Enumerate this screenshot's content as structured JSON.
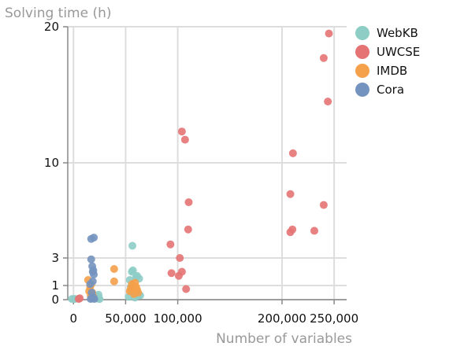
{
  "chart_data": {
    "type": "scatter",
    "title": "",
    "xlabel": "Number of variables",
    "ylabel": "Solving time (h)",
    "xlim": [
      0,
      262000
    ],
    "ylim": [
      0,
      20
    ],
    "x_ticks": [
      0,
      50000,
      100000,
      200000,
      250000
    ],
    "x_tick_labels": [
      "0",
      "50,000",
      "100,000",
      "200,000",
      "250,000"
    ],
    "y_ticks": [
      0,
      1,
      3,
      10,
      20
    ],
    "y_tick_labels": [
      "0",
      "1",
      "3",
      "10",
      "20"
    ],
    "grid": true,
    "legend_position": "top-right",
    "series": [
      {
        "name": "WebKB",
        "color": "#8ecdc6",
        "points": [
          [
            -1500,
            0.05
          ],
          [
            600,
            0.05
          ],
          [
            1500,
            0.05
          ],
          [
            22000,
            0.1
          ],
          [
            23000,
            0.2
          ],
          [
            24000,
            0.35
          ],
          [
            25000,
            0.05
          ],
          [
            23500,
            0.15
          ],
          [
            24500,
            0.05
          ],
          [
            54000,
            1.4
          ],
          [
            55000,
            0.9
          ],
          [
            56000,
            2.0
          ],
          [
            56500,
            3.9
          ],
          [
            57000,
            2.1
          ],
          [
            58000,
            0.5
          ],
          [
            59000,
            0.15
          ],
          [
            60000,
            1.6
          ],
          [
            61000,
            1.7
          ],
          [
            62000,
            0.3
          ],
          [
            63000,
            1.5
          ],
          [
            64000,
            0.3
          ],
          [
            53000,
            0.2
          ],
          [
            55500,
            0.6
          ]
        ]
      },
      {
        "name": "UWCSE",
        "color": "#e57373",
        "points": [
          [
            5000,
            0.05
          ],
          [
            6000,
            0.1
          ],
          [
            93000,
            4.0
          ],
          [
            94000,
            1.9
          ],
          [
            101000,
            1.7
          ],
          [
            102000,
            3.0
          ],
          [
            104000,
            2.0
          ],
          [
            104000,
            12.3
          ],
          [
            107000,
            11.7
          ],
          [
            108000,
            0.75
          ],
          [
            110000,
            5.1
          ],
          [
            110500,
            7.1
          ],
          [
            208000,
            7.7
          ],
          [
            208000,
            4.9
          ],
          [
            210000,
            5.1
          ],
          [
            210500,
            10.7
          ],
          [
            231000,
            5.0
          ],
          [
            240000,
            6.9
          ],
          [
            240000,
            17.7
          ],
          [
            244000,
            14.5
          ],
          [
            245000,
            19.5
          ]
        ]
      },
      {
        "name": "IMDB",
        "color": "#f5a04a",
        "points": [
          [
            14000,
            1.4
          ],
          [
            15000,
            0.6
          ],
          [
            16000,
            0.9
          ],
          [
            16500,
            0.3
          ],
          [
            17000,
            1.1
          ],
          [
            18000,
            0.5
          ],
          [
            19000,
            0.2
          ],
          [
            39000,
            2.2
          ],
          [
            39000,
            1.3
          ],
          [
            54000,
            0.6
          ],
          [
            55000,
            0.8
          ],
          [
            56000,
            1.1
          ],
          [
            58000,
            0.4
          ],
          [
            60000,
            0.9
          ],
          [
            61000,
            0.7
          ],
          [
            62000,
            0.5
          ],
          [
            59000,
            1.2
          ]
        ]
      },
      {
        "name": "Cora",
        "color": "#7494bf",
        "points": [
          [
            17000,
            4.4
          ],
          [
            19500,
            4.5
          ],
          [
            17000,
            2.9
          ],
          [
            18000,
            2.4
          ],
          [
            18500,
            2.0
          ],
          [
            19000,
            2.1
          ],
          [
            19500,
            1.8
          ],
          [
            16500,
            0.05
          ],
          [
            17500,
            0.5
          ],
          [
            18000,
            0.1
          ],
          [
            19000,
            0.15
          ],
          [
            20000,
            0.05
          ],
          [
            16000,
            1.1
          ],
          [
            18500,
            1.3
          ]
        ]
      }
    ]
  }
}
